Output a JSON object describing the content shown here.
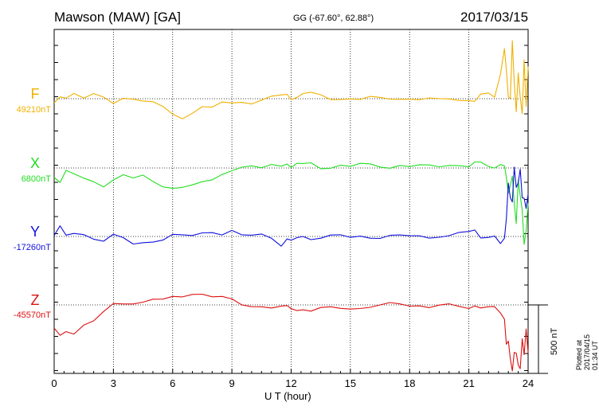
{
  "header": {
    "station": "Mawson (MAW)  [GA]",
    "coords": "GG (-67.60°,  62.88°)",
    "date": "2017/03/15"
  },
  "plotted_note": "Plotted at 2017/04/15 01:34 UT",
  "scale_label": "500 nT",
  "chart_data": {
    "type": "line",
    "xlabel": "U T (hour)",
    "xlim": [
      0,
      24
    ],
    "xticks": [
      0,
      3,
      6,
      9,
      12,
      15,
      18,
      21,
      24
    ],
    "x": [
      0,
      0.3,
      0.6,
      1,
      1.5,
      2,
      2.5,
      3,
      3.5,
      4,
      4.5,
      5,
      5.5,
      6,
      6.5,
      7,
      7.5,
      8,
      8.5,
      9,
      9.5,
      10,
      10.5,
      11,
      11.5,
      11.8,
      12,
      12.3,
      12.6,
      13,
      13.5,
      14,
      14.5,
      15,
      15.5,
      16,
      16.5,
      17,
      17.5,
      18,
      18.5,
      19,
      19.5,
      20,
      20.5,
      21,
      21.3,
      21.6,
      22,
      22.3,
      22.6,
      22.8,
      22.9,
      23,
      23.1,
      23.2,
      23.3,
      23.4,
      23.5,
      23.6,
      23.7,
      23.8,
      23.9,
      24
    ],
    "grid": true,
    "scale_bar_nT": 500,
    "series": [
      {
        "name": "F",
        "baseline_label": "49210nT",
        "color": "#f0b000",
        "rel_nT": [
          -30,
          30,
          10,
          40,
          0,
          20,
          10,
          -20,
          10,
          0,
          -20,
          -40,
          -60,
          -100,
          -140,
          -100,
          -60,
          -80,
          -30,
          -20,
          -20,
          -30,
          -10,
          0,
          20,
          40,
          0,
          20,
          40,
          30,
          20,
          0,
          0,
          10,
          0,
          0,
          0,
          0,
          0,
          10,
          0,
          -10,
          -10,
          0,
          -10,
          0,
          -10,
          20,
          30,
          10,
          180,
          380,
          220,
          0,
          -10,
          420,
          120,
          -80,
          200,
          0,
          -120,
          280,
          -60,
          250
        ]
      },
      {
        "name": "X",
        "baseline_label": "6800nT",
        "color": "#22dd22",
        "rel_nT": [
          -50,
          -100,
          -30,
          -50,
          -80,
          -100,
          -120,
          -80,
          -60,
          -80,
          -60,
          -100,
          -120,
          -140,
          -150,
          -130,
          -110,
          -90,
          -30,
          -10,
          0,
          10,
          -10,
          20,
          30,
          40,
          0,
          30,
          20,
          30,
          10,
          10,
          20,
          10,
          20,
          20,
          20,
          10,
          20,
          10,
          10,
          10,
          20,
          30,
          20,
          10,
          30,
          30,
          20,
          10,
          30,
          20,
          -80,
          -200,
          -120,
          -50,
          -250,
          -400,
          -100,
          -220,
          -300,
          -550,
          -450,
          -250
        ]
      },
      {
        "name": "Y",
        "baseline_label": "-17260nT",
        "color": "#1010dd",
        "rel_nT": [
          10,
          60,
          0,
          30,
          20,
          -10,
          -30,
          0,
          -20,
          -50,
          -40,
          -30,
          -20,
          0,
          0,
          10,
          30,
          40,
          20,
          30,
          0,
          10,
          20,
          0,
          -60,
          -30,
          -40,
          -10,
          0,
          -10,
          0,
          0,
          0,
          -10,
          0,
          0,
          0,
          0,
          0,
          0,
          0,
          0,
          10,
          0,
          20,
          30,
          40,
          0,
          10,
          0,
          -60,
          -20,
          120,
          400,
          300,
          250,
          500,
          350,
          380,
          500,
          300,
          280,
          200,
          300
        ]
      },
      {
        "name": "Z",
        "baseline_label": "-45570nT",
        "color": "#dd1010",
        "rel_nT": [
          -180,
          -230,
          -180,
          -200,
          -150,
          -120,
          -60,
          0,
          20,
          20,
          20,
          40,
          30,
          50,
          70,
          90,
          80,
          60,
          50,
          30,
          10,
          0,
          -10,
          -20,
          -20,
          -20,
          -20,
          -30,
          -30,
          -40,
          -30,
          -30,
          -20,
          -20,
          -20,
          -10,
          -10,
          0,
          10,
          0,
          0,
          -10,
          -10,
          -10,
          -10,
          -20,
          0,
          -10,
          -20,
          -30,
          -60,
          -100,
          -280,
          -250,
          -400,
          -500,
          -350,
          -350,
          -430,
          -450,
          -250,
          -380,
          -180,
          -350
        ]
      }
    ]
  }
}
